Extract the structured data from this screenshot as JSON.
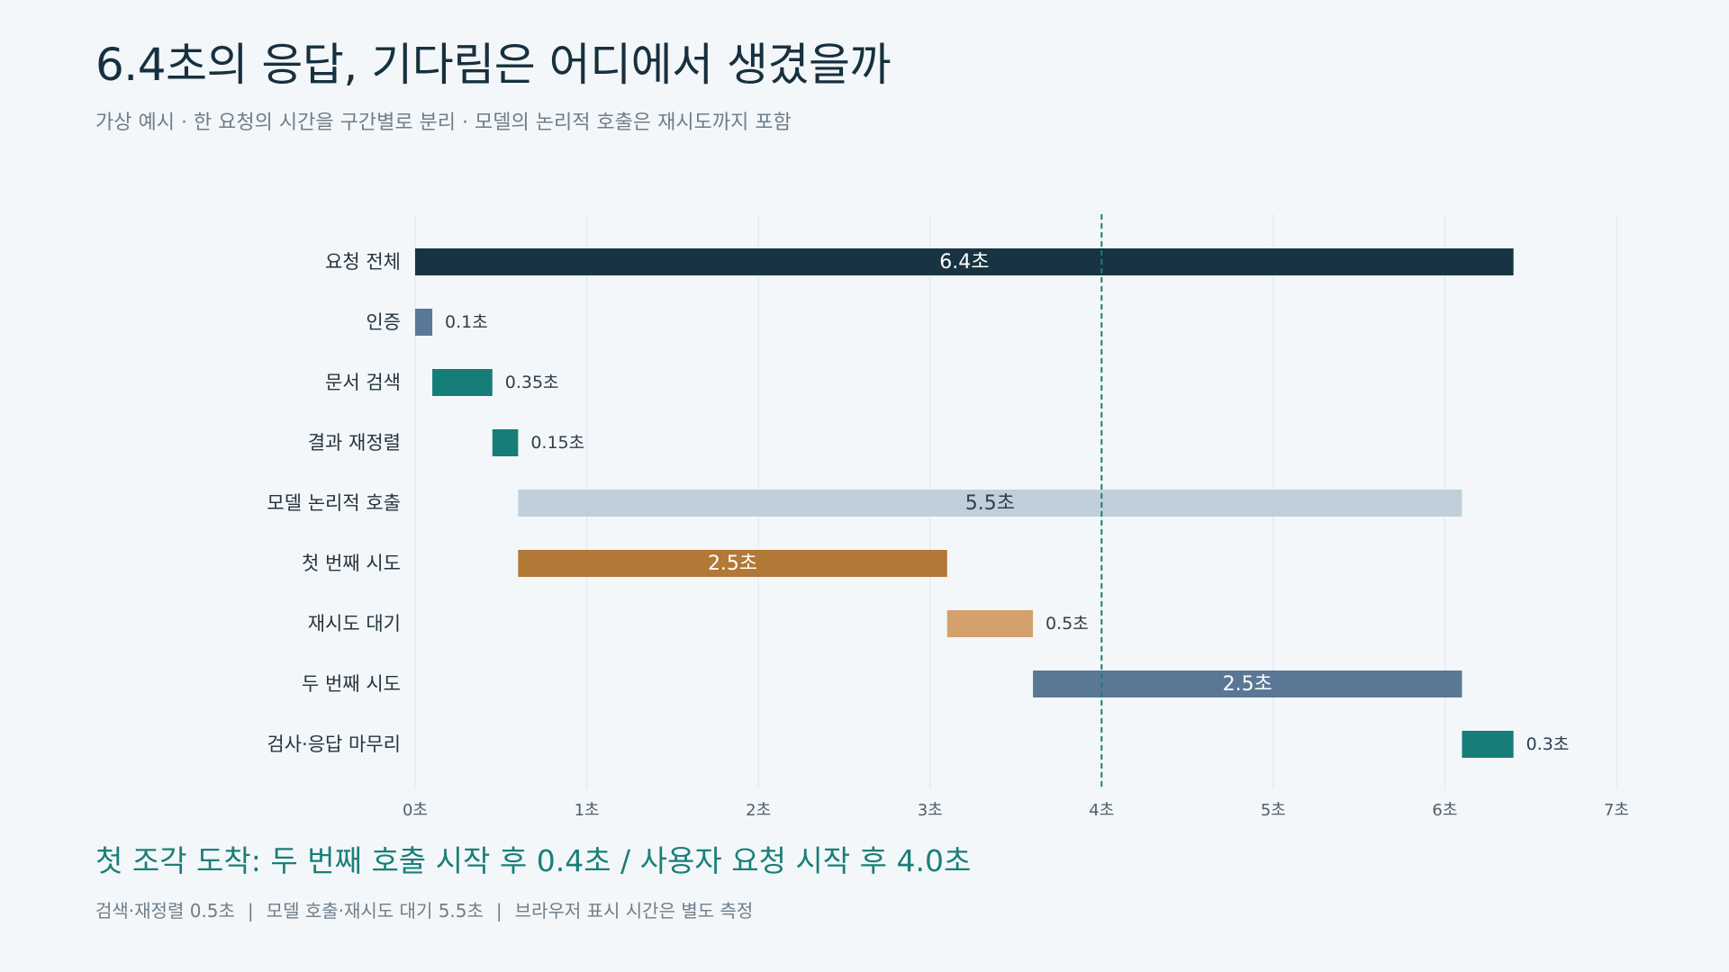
{
  "header": {
    "title": "6.4초의 응답, 기다림은 어디에서 생겼을까",
    "subtitle": "가상 예시 · 한 요청의 시간을 구간별로 분리 · 모델의 논리적 호출은 재시도까지 포함"
  },
  "chart_data": {
    "type": "bar",
    "orientation": "horizontal",
    "variant": "gantt",
    "xlim": [
      0,
      7
    ],
    "x_ticks": [
      "0초",
      "1초",
      "2초",
      "3초",
      "4초",
      "5초",
      "6초",
      "7초"
    ],
    "grid": true,
    "reference_line": {
      "x": 4.0
    },
    "rows": [
      {
        "label": "요청 전체",
        "start": 0.0,
        "end": 6.4,
        "value_label": "6.4초",
        "color": "#183341",
        "label_inside": true,
        "label_color": "#ffffff"
      },
      {
        "label": "인증",
        "start": 0.0,
        "end": 0.1,
        "value_label": "0.1초",
        "color": "#5a7896",
        "label_inside": false
      },
      {
        "label": "문서 검색",
        "start": 0.1,
        "end": 0.45,
        "value_label": "0.35초",
        "color": "#167d78",
        "label_inside": false
      },
      {
        "label": "결과 재정렬",
        "start": 0.45,
        "end": 0.6,
        "value_label": "0.15초",
        "color": "#167d78",
        "label_inside": false
      },
      {
        "label": "모델 논리적 호출",
        "start": 0.6,
        "end": 6.1,
        "value_label": "5.5초",
        "color": "#bfd0db",
        "label_inside": true,
        "label_color": "#2f3f4b"
      },
      {
        "label": "첫 번째 시도",
        "start": 0.6,
        "end": 3.1,
        "value_label": "2.5초",
        "color": "#b27835",
        "label_inside": true,
        "label_color": "#ffffff"
      },
      {
        "label": "재시도 대기",
        "start": 3.1,
        "end": 3.6,
        "value_label": "0.5초",
        "color": "#d3a26c",
        "label_inside": false
      },
      {
        "label": "두 번째 시도",
        "start": 3.6,
        "end": 6.1,
        "value_label": "2.5초",
        "color": "#5a7896",
        "label_inside": true,
        "label_color": "#ffffff"
      },
      {
        "label": "검사·응답 마무리",
        "start": 6.1,
        "end": 6.4,
        "value_label": "0.3초",
        "color": "#167d78",
        "label_inside": false
      }
    ]
  },
  "callout": "첫 조각 도착: 두 번째 호출 시작 후 0.4초 / 사용자 요청 시작 후 4.0초",
  "footnote": {
    "items": [
      "검색·재정렬 0.5초",
      "모델 호출·재시도 대기 5.5초",
      "브라우저 표시 시간은 별도 측정"
    ],
    "separator": "|"
  },
  "colors": {
    "background": "#f3f7fa",
    "title": "#17303f",
    "accent": "#1a7f78",
    "muted": "#6f7e8a",
    "grid": "#dfe5ea"
  }
}
